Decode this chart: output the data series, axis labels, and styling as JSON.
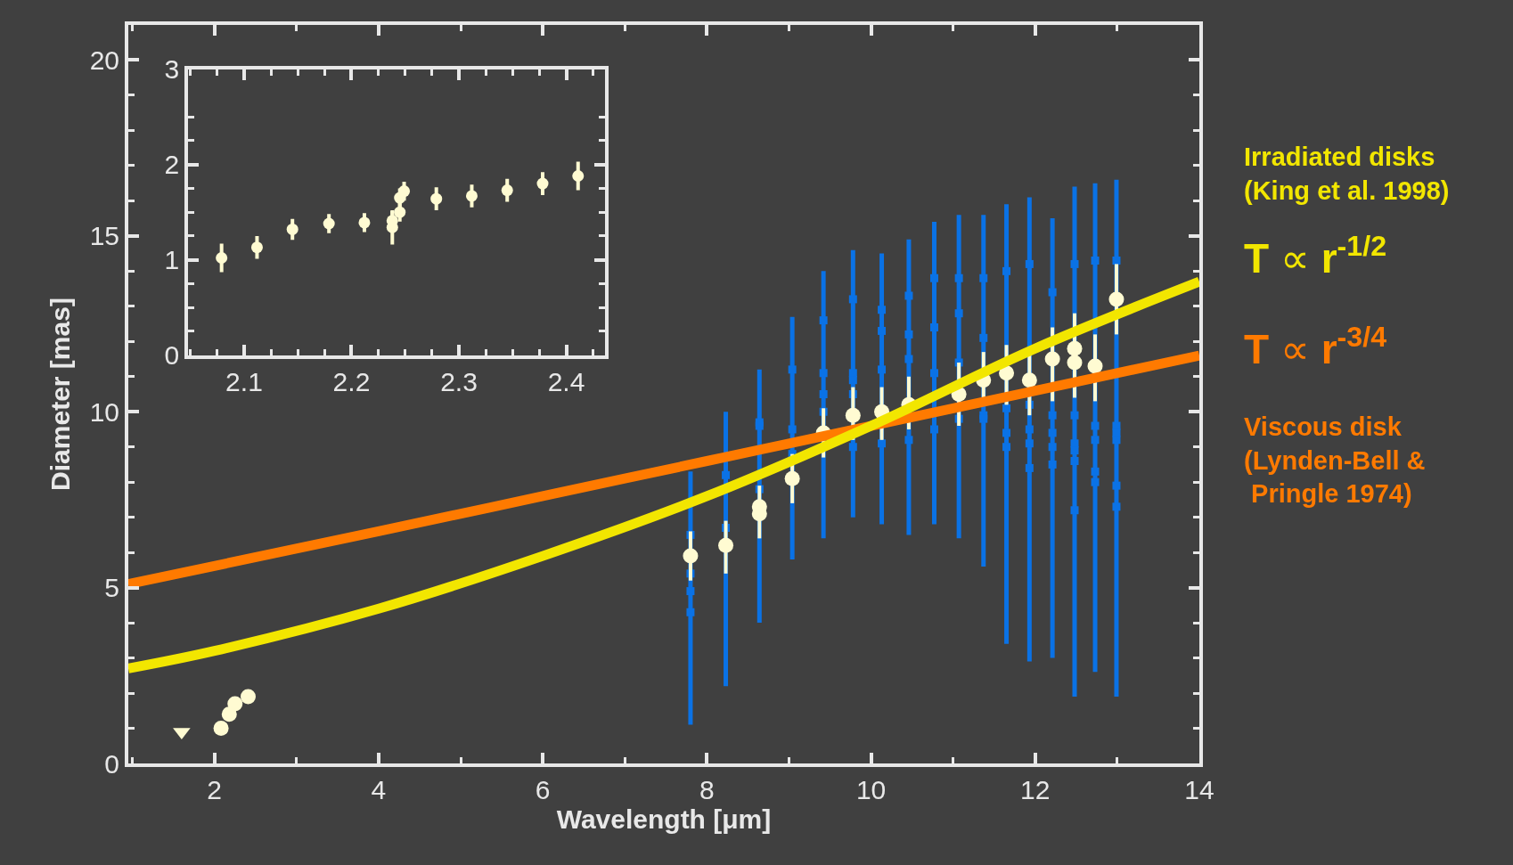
{
  "chart_data": [
    {
      "type": "scatter",
      "xlabel": "Wavelength [μm]",
      "ylabel": "Diameter [mas]",
      "xlim": [
        0.95,
        14
      ],
      "ylim": [
        0,
        21
      ],
      "xticks": [
        {
          "value": 1,
          "label": null
        },
        2,
        {
          "value": 3,
          "label": null
        },
        4,
        {
          "value": 5,
          "label": null
        },
        6,
        {
          "value": 7,
          "label": null
        },
        8,
        {
          "value": 9,
          "label": null
        },
        10,
        {
          "value": 11,
          "label": null
        },
        12,
        {
          "value": 13,
          "label": null
        },
        14
      ],
      "yticks": [
        0,
        {
          "value": 1,
          "label": null
        },
        {
          "value": 2,
          "label": null
        },
        {
          "value": 3,
          "label": null
        },
        {
          "value": 4,
          "label": null
        },
        5,
        {
          "value": 6,
          "label": null
        },
        {
          "value": 7,
          "label": null
        },
        {
          "value": 8,
          "label": null
        },
        {
          "value": 9,
          "label": null
        },
        10,
        {
          "value": 11,
          "label": null
        },
        {
          "value": 12,
          "label": null
        },
        {
          "value": 13,
          "label": null
        },
        {
          "value": 14,
          "label": null
        },
        15,
        {
          "value": 16,
          "label": null
        },
        {
          "value": 17,
          "label": null
        },
        {
          "value": 18,
          "label": null
        },
        {
          "value": 19,
          "label": null
        },
        20
      ],
      "grid": false,
      "annotations": [
        "Irradiated disks\n(King et al. 1998)",
        "Viscous disk\n(Lynden-Bell &\n Pringle 1974)"
      ],
      "series": [
        {
          "type": "scatter",
          "marker": "square",
          "color": "#0a72e6",
          "x": [
            7.8,
            7.8,
            7.8,
            7.8,
            8.23,
            8.23,
            8.64,
            8.64,
            8.64,
            9.04,
            9.04,
            9.04,
            9.42,
            9.42,
            9.42,
            9.42,
            9.78,
            9.78,
            9.78,
            9.78,
            9.78,
            10.13,
            10.13,
            10.13,
            10.13,
            10.46,
            10.46,
            10.46,
            10.46,
            10.77,
            10.77,
            10.77,
            10.77,
            11.07,
            11.07,
            11.07,
            11.07,
            11.37,
            11.37,
            11.37,
            11.37,
            11.65,
            11.65,
            11.65,
            11.65,
            11.93,
            11.93,
            11.93,
            11.93,
            11.93,
            12.21,
            12.21,
            12.21,
            12.21,
            12.21,
            12.48,
            12.48,
            12.48,
            12.48,
            12.48,
            12.48,
            12.73,
            12.73,
            12.73,
            12.73,
            12.73,
            12.99,
            12.99,
            12.99,
            12.99,
            12.99,
            12.99
          ],
          "values": [
            6.5,
            5.4,
            4.9,
            4.3,
            8.2,
            6.7,
            9.7,
            9.6,
            7.8,
            11.2,
            9.5,
            8.8,
            12.6,
            11.1,
            10.5,
            10.0,
            13.2,
            11.1,
            10.9,
            10.5,
            9.0,
            12.9,
            12.3,
            11.2,
            9.1,
            13.3,
            12.2,
            11.5,
            9.2,
            13.8,
            12.4,
            11.1,
            9.5,
            13.8,
            12.8,
            11.4,
            9.8,
            13.8,
            12.1,
            9.9,
            9.8,
            14.0,
            10.1,
            9.4,
            9.0,
            14.2,
            10.2,
            9.5,
            9.1,
            8.4,
            13.4,
            9.9,
            9.4,
            9.0,
            8.5,
            14.2,
            9.9,
            9.1,
            8.9,
            8.6,
            7.2,
            14.3,
            9.6,
            9.2,
            8.3,
            8.0,
            14.3,
            9.6,
            9.4,
            9.2,
            7.9,
            7.3
          ],
          "errors": [
            [
              1.1,
              8.3
            ],
            null,
            null,
            null,
            [
              2.2,
              10.0
            ],
            null,
            [
              4.0,
              11.2
            ],
            null,
            null,
            [
              5.8,
              12.7
            ],
            null,
            null,
            [
              6.4,
              14.0
            ],
            null,
            null,
            null,
            [
              7.0,
              14.6
            ],
            null,
            null,
            null,
            null,
            [
              6.8,
              14.5
            ],
            null,
            null,
            null,
            [
              6.5,
              14.9
            ],
            null,
            null,
            null,
            [
              6.8,
              15.4
            ],
            null,
            null,
            null,
            [
              6.4,
              15.6
            ],
            null,
            null,
            null,
            [
              5.6,
              15.6
            ],
            null,
            null,
            null,
            [
              3.4,
              15.9
            ],
            null,
            null,
            null,
            [
              2.9,
              16.1
            ],
            null,
            null,
            null,
            null,
            [
              3.0,
              15.5
            ],
            null,
            null,
            null,
            null,
            [
              1.9,
              16.4
            ],
            null,
            null,
            null,
            null,
            null,
            [
              2.6,
              16.5
            ],
            null,
            null,
            null,
            null,
            [
              1.9,
              16.6
            ],
            null,
            null,
            null,
            null,
            null
          ]
        },
        {
          "type": "scatter",
          "marker": "circle",
          "color": "#fffbd2",
          "x": [
            7.8,
            8.23,
            8.64,
            8.64,
            9.04,
            9.42,
            9.78,
            10.13,
            10.46,
            11.07,
            11.37,
            11.65,
            11.93,
            12.21,
            12.48,
            12.48,
            12.73,
            12.99
          ],
          "values": [
            5.9,
            6.2,
            7.3,
            7.1,
            8.1,
            9.4,
            9.9,
            10.0,
            10.2,
            10.5,
            10.9,
            11.1,
            10.9,
            11.5,
            11.8,
            11.4,
            11.3,
            13.2
          ],
          "errors": [
            [
              5.2,
              6.6
            ],
            [
              5.4,
              6.9
            ],
            [
              6.4,
              7.9
            ],
            null,
            [
              7.4,
              8.8
            ],
            [
              8.7,
              10.1
            ],
            [
              9.2,
              10.7
            ],
            [
              9.2,
              10.7
            ],
            [
              9.5,
              11.0
            ],
            [
              9.6,
              11.4
            ],
            [
              10.2,
              11.7
            ],
            [
              10.2,
              11.9
            ],
            [
              9.9,
              11.8
            ],
            [
              10.3,
              12.4
            ],
            [
              10.4,
              12.8
            ],
            null,
            [
              10.3,
              12.2
            ],
            [
              12.2,
              14.2
            ]
          ]
        },
        {
          "marker": "circle",
          "color": "#fffbd2",
          "x": [
            2.08,
            2.18,
            2.25,
            2.41
          ],
          "values": [
            1.0,
            1.4,
            1.7,
            1.9
          ]
        },
        {
          "marker": "triangle",
          "color": "#fffbd2",
          "x": [
            1.6
          ],
          "values": [
            0.9
          ]
        },
        {
          "type": "line",
          "name": "T ∝ r$^{-3/4}$",
          "color": "#ff7a00",
          "marker": "none",
          "x": [
            0.95,
            4,
            6,
            8,
            10,
            12,
            14
          ],
          "values": [
            5.1,
            6.6,
            7.6,
            8.6,
            9.6,
            10.6,
            11.6
          ]
        },
        {
          "type": "line",
          "name": "T ∝ r$^{-1/2}$",
          "color": "#f2e600",
          "marker": "none",
          "x": [
            0.95,
            2,
            4,
            6,
            8,
            10,
            12,
            14
          ],
          "values": [
            2.7,
            3.2,
            4.4,
            5.9,
            7.6,
            9.6,
            11.8,
            13.7
          ]
        }
      ]
    },
    {
      "type": "scatter",
      "xlim": [
        2.048,
        2.436
      ],
      "ylim": [
        0,
        3
      ],
      "xticks": [
        {
          "value": 2.05,
          "label": null
        },
        {
          "value": 2.075,
          "label": null
        },
        2.1,
        {
          "value": 2.125,
          "label": null
        },
        {
          "value": 2.15,
          "label": null
        },
        {
          "value": 2.175,
          "label": null
        },
        2.2,
        {
          "value": 2.225,
          "label": null
        },
        {
          "value": 2.25,
          "label": null
        },
        {
          "value": 2.275,
          "label": null
        },
        2.3,
        {
          "value": 2.325,
          "label": null
        },
        {
          "value": 2.35,
          "label": null
        },
        {
          "value": 2.375,
          "label": null
        },
        2.4,
        {
          "value": 2.425,
          "label": null
        }
      ],
      "yticks": [
        0,
        {
          "value": 0.25,
          "label": null
        },
        {
          "value": 0.5,
          "label": null
        },
        {
          "value": 0.75,
          "label": null
        },
        1,
        {
          "value": 1.25,
          "label": null
        },
        {
          "value": 1.5,
          "label": null
        },
        {
          "value": 1.75,
          "label": null
        },
        2,
        {
          "value": 2.25,
          "label": null
        },
        {
          "value": 2.5,
          "label": null
        },
        3
      ],
      "grid": false,
      "series": [
        {
          "type": "scatter",
          "marker": "circle",
          "color": "#fffbd2",
          "x": [
            2.079,
            2.112,
            2.145,
            2.179,
            2.212,
            2.238,
            2.238,
            2.245,
            2.245,
            2.249,
            2.279,
            2.312,
            2.345,
            2.378,
            2.411
          ],
          "values": [
            1.02,
            1.13,
            1.32,
            1.38,
            1.39,
            1.41,
            1.34,
            1.5,
            1.65,
            1.72,
            1.64,
            1.67,
            1.73,
            1.8,
            1.88
          ],
          "errors": [
            0.15,
            0.12,
            0.11,
            0.1,
            0.1,
            0.1,
            0.18,
            0.1,
            0.1,
            0.1,
            0.12,
            0.12,
            0.12,
            0.12,
            0.15
          ]
        }
      ]
    }
  ]
}
